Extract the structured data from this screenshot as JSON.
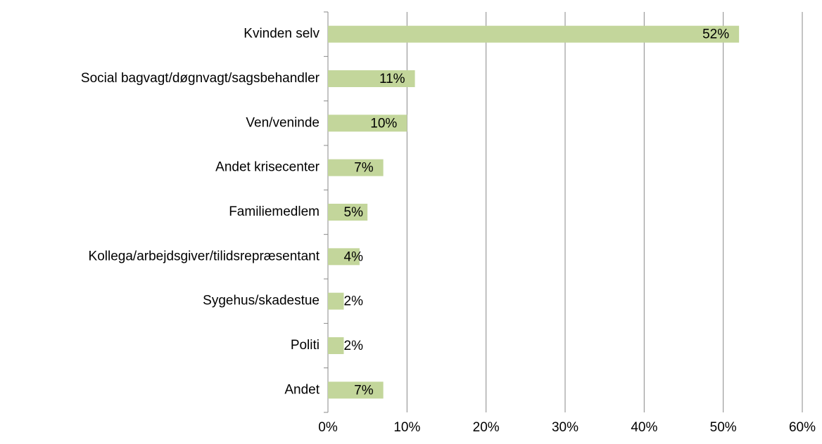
{
  "chart_data": {
    "type": "bar",
    "orientation": "horizontal",
    "categories": [
      "Kvinden selv",
      "Social bagvagt/døgnvagt/sagsbehandler",
      "Ven/veninde",
      "Andet krisecenter",
      "Familiemedlem",
      "Kollega/arbejdsgiver/tilidsrepræsentant",
      "Sygehus/skadestue",
      "Politi",
      "Andet"
    ],
    "values": [
      52,
      11,
      10,
      7,
      5,
      4,
      2,
      2,
      7
    ],
    "value_labels": [
      "52%",
      "11%",
      "10%",
      "7%",
      "5%",
      "4%",
      "2%",
      "2%",
      "7%"
    ],
    "color": "#c3d69b",
    "xlim": [
      0,
      60
    ],
    "xticks": [
      {
        "value": 0,
        "label": "0%"
      },
      {
        "value": 10,
        "label": "10%"
      },
      {
        "value": 20,
        "label": "20%"
      },
      {
        "value": 30,
        "label": "30%"
      },
      {
        "value": 40,
        "label": "40%"
      },
      {
        "value": 50,
        "label": "50%"
      },
      {
        "value": 60,
        "label": "60%"
      }
    ],
    "grid": true
  }
}
